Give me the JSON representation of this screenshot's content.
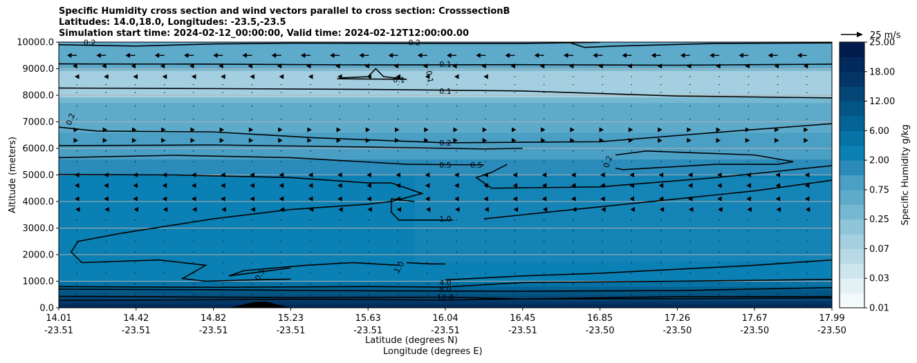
{
  "title_lines": [
    "Specific Humidity cross section and wind vectors parallel to cross section: CrosssectionB",
    "Latitudes: 14.0,18.0, Longitudes: -23.5,-23.5",
    "Simulation start time: 2024-02-12_00:00:00, Valid time: 2024-02-12T12:00:00.00"
  ],
  "chart_data": {
    "type": "contour",
    "title": "Specific Humidity cross section and wind vectors parallel to cross section: CrosssectionB",
    "ylabel": "Altitude (meters)",
    "xlabel_line1": "Latitude (degrees N)",
    "xlabel_line2": "Longitude (degrees E)",
    "ylim": [
      0,
      10000
    ],
    "y_ticks": [
      "0.0",
      "1000.0",
      "2000.0",
      "3000.0",
      "4000.0",
      "5000.0",
      "6000.0",
      "7000.0",
      "8000.0",
      "9000.0",
      "10000.0"
    ],
    "x_ticks": [
      {
        "lat": "14.01",
        "lon": "-23.51"
      },
      {
        "lat": "14.42",
        "lon": "-23.51"
      },
      {
        "lat": "14.82",
        "lon": "-23.51"
      },
      {
        "lat": "15.23",
        "lon": "-23.51"
      },
      {
        "lat": "15.63",
        "lon": "-23.51"
      },
      {
        "lat": "16.04",
        "lon": "-23.51"
      },
      {
        "lat": "16.45",
        "lon": "-23.51"
      },
      {
        "lat": "16.85",
        "lon": "-23.50"
      },
      {
        "lat": "17.26",
        "lon": "-23.50"
      },
      {
        "lat": "17.67",
        "lon": "-23.50"
      },
      {
        "lat": "17.99",
        "lon": "-23.50"
      }
    ],
    "grid": "horizontal",
    "colorbar": {
      "label": "Specific Humidity g/kg",
      "tick_labels": [
        "0.01",
        "0.03",
        "0.07",
        "0.25",
        "0.75",
        "2.00",
        "6.00",
        "12.00",
        "18.00",
        "25.00"
      ],
      "levels": [
        0.01,
        0.02,
        0.03,
        0.05,
        0.07,
        0.1,
        0.25,
        0.5,
        0.75,
        1.0,
        2.0,
        4.0,
        6.0,
        8.0,
        12.0,
        15.0,
        18.0,
        22.0,
        25.0
      ],
      "colors": [
        "#f4f9fb",
        "#e3f0f4",
        "#cde5ed",
        "#b7dae6",
        "#a3cfe0",
        "#8ec5d9",
        "#76b8d1",
        "#5eaacb",
        "#4a9fc4",
        "#2b8cbb",
        "#0a80b4",
        "#0672a6",
        "#036495",
        "#035685",
        "#044777",
        "#033567",
        "#032a5c",
        "#021b4d"
      ]
    },
    "quiver_key": "25 m/s",
    "contour_labels": [
      "0.2",
      "0.2",
      "0.1",
      "0.1",
      "0.1",
      "0.1",
      "0.2",
      "0.2",
      "0.2",
      "0.5",
      "0.5",
      "1.0",
      "1.0",
      "0.5",
      "4.0",
      "8.0",
      "12.0"
    ]
  }
}
